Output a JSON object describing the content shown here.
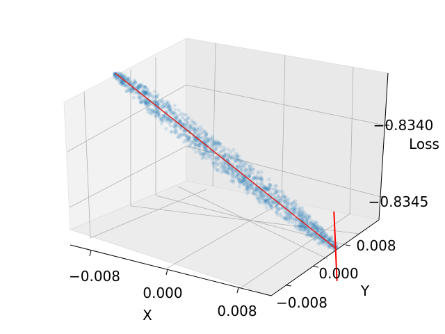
{
  "chart_data": {
    "type": "scatter3d",
    "axes": {
      "x": {
        "label": "X",
        "ticks": [
          -0.008,
          0.0,
          0.008
        ],
        "tick_labels": [
          "−0.008",
          "0.000",
          "0.008"
        ],
        "range": [
          -0.012,
          0.012
        ]
      },
      "y": {
        "label": "Y",
        "ticks": [
          -0.008,
          0.0,
          0.008
        ],
        "tick_labels": [
          "−0.008",
          "0.000",
          "0.008"
        ],
        "range": [
          -0.012,
          0.012
        ]
      },
      "z": {
        "label": "Loss",
        "ticks": [
          -0.8345,
          -0.834
        ],
        "tick_labels": [
          "−0.8345",
          "−0.8340"
        ],
        "range": [
          -0.83465,
          -0.83385
        ]
      }
    },
    "grid": true,
    "series": [
      {
        "kind": "points",
        "color": "#1f77b4",
        "alpha": 0.15,
        "description_points": "dense elongated cloud of sampled loss values",
        "center_line": [
          {
            "x": -0.0102,
            "y": 0.0045,
            "z": -0.83385
          },
          {
            "x": 0.0102,
            "y": -0.0045,
            "z": -0.8346
          }
        ],
        "half_width_along_y": 0.0022
      },
      {
        "kind": "line",
        "color": "#d62728",
        "points": [
          {
            "x": -0.0102,
            "y": 0.0045,
            "z": -0.83385
          },
          {
            "x": 0.0102,
            "y": -0.0045,
            "z": -0.8346
          }
        ]
      },
      {
        "kind": "line",
        "color": "#ff0000",
        "points": [
          {
            "x": 0.0102,
            "y": -0.0045,
            "z": -0.8346
          },
          {
            "x": 0.0102,
            "y": -0.0045,
            "z": -0.8344
          }
        ]
      },
      {
        "kind": "line",
        "color": "#ff0000",
        "points": [
          {
            "x": 0.0102,
            "y": -0.0045,
            "z": -0.8346
          },
          {
            "x": 0.0102,
            "y": -0.0045,
            "z": -0.83478
          }
        ]
      }
    ]
  }
}
